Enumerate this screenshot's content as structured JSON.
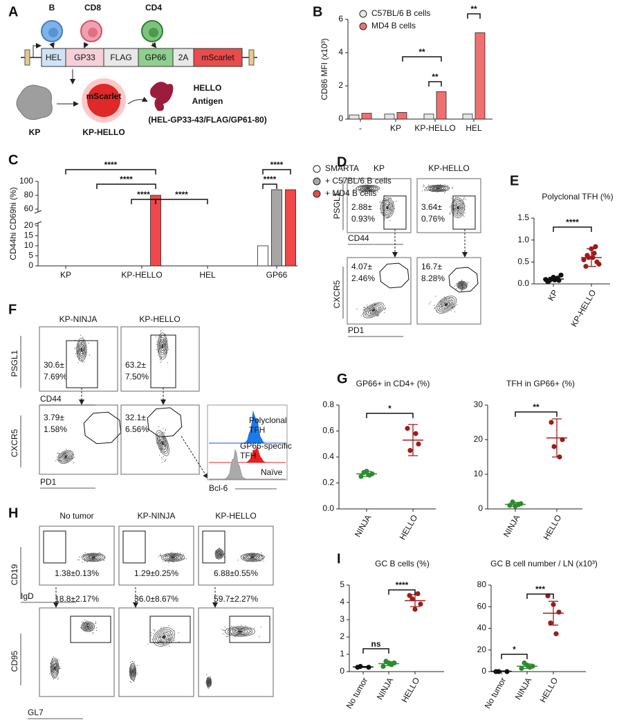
{
  "panel_labels": [
    "A",
    "B",
    "C",
    "D",
    "E",
    "F",
    "G",
    "H",
    "I"
  ],
  "schematic": {
    "cell_labels": [
      "B",
      "CD8",
      "CD4"
    ],
    "segments": [
      "HEL",
      "GP33",
      "FLAG",
      "GP66",
      "2A",
      "mScarlet"
    ],
    "cell_inner": "mScarlet",
    "tumor_labels": [
      "KP",
      "KP-HELLO"
    ],
    "antigen_title": [
      "HELLO",
      "Antigen"
    ],
    "antigen_formula": "(HEL-GP33-43/FLAG/GP61-80)"
  },
  "flow_D": {
    "titles": [
      "KP",
      "KP-HELLO"
    ],
    "top_axes": [
      "PSGL1",
      "CD44"
    ],
    "bottom_axes": [
      "CXCR5",
      "PD1"
    ],
    "top_pcts": [
      [
        "2.88±",
        "0.93%"
      ],
      [
        "3.64±",
        "0.76%"
      ]
    ],
    "bottom_pcts": [
      [
        "4.07±",
        "2.46%"
      ],
      [
        "16.7±",
        "8.28%"
      ]
    ]
  },
  "flow_F": {
    "titles": [
      "KP-NINJA",
      "KP-HELLO"
    ],
    "top_axes": [
      "PSGL1",
      "CD44"
    ],
    "bottom_axes": [
      "CXCR5",
      "PD1"
    ],
    "top_pcts": [
      [
        "30.6±",
        "7.69%"
      ],
      [
        "63.2±",
        "7.50%"
      ]
    ],
    "bottom_pcts": [
      [
        "3.79±",
        "1.58%"
      ],
      [
        "32.1±",
        "6.56%"
      ]
    ],
    "histogram": {
      "legend": [
        [
          "Polyclonal",
          "TFH"
        ],
        [
          "GP66-specific",
          "TFH"
        ],
        [
          "Naïve"
        ]
      ],
      "xlabel": "Bcl-6"
    }
  },
  "flow_H": {
    "titles": [
      "No tumor",
      "KP-NINJA",
      "KP-HELLO"
    ],
    "top_axes": [
      "CD19",
      "IgD"
    ],
    "bottom_axes": [
      "CD95",
      "GL7"
    ],
    "top_pcts": [
      "1.38±0.13%",
      "1.29±0.25%",
      "6.88±0.55%"
    ],
    "bottom_pcts": [
      "18.8±2.17%",
      "36.0±8.67%",
      "59.7±2.27%"
    ]
  },
  "chart_data": [
    {
      "type": "bar",
      "ylabel": "CD86 MFI (x10³)",
      "categories": [
        "-",
        "KP",
        "KP-HELLO",
        "HEL"
      ],
      "series": [
        {
          "name": "C57BL/6 B cells",
          "color": "#e6e6e6",
          "values": [
            0.25,
            0.3,
            0.3,
            0.3
          ]
        },
        {
          "name": "MD4 B cells",
          "color": "#f07070",
          "values": [
            0.35,
            0.4,
            1.65,
            5.2
          ]
        }
      ],
      "ylim": [
        0,
        6
      ],
      "yticks": [
        0,
        2,
        4,
        6
      ],
      "legend": "upper left",
      "annotations": [
        "**",
        "**",
        "**"
      ]
    },
    {
      "type": "bar",
      "ylabel": "CD44hi CD69hi (%)",
      "categories": [
        "KP",
        "KP-HELLO",
        "HEL",
        "GP66"
      ],
      "series": [
        {
          "name": "SMARTA",
          "color": "#ffffff",
          "values": [
            0,
            0,
            0,
            10
          ]
        },
        {
          "name": "+ C57BL/6 B cells",
          "color": "#a6a6a6",
          "values": [
            0,
            0,
            0,
            88
          ]
        },
        {
          "name": "+ MD4 B cells",
          "color": "#f04848",
          "values": [
            0,
            80,
            0,
            88
          ]
        }
      ],
      "ylim": [
        0,
        100
      ],
      "ybreak": [
        20,
        60
      ],
      "yticks": [
        0,
        5,
        10,
        15,
        20,
        60,
        80,
        100
      ],
      "legend": "right",
      "annotations": [
        "****",
        "****",
        "****",
        "****",
        "****",
        "****"
      ]
    },
    {
      "type": "strip",
      "title": "Polyclonal TFH (%)",
      "categories": [
        "KP",
        "KP-HELLO"
      ],
      "colors": [
        "#111111",
        "#9c1c1c"
      ],
      "points": [
        [
          0.05,
          0.08,
          0.1,
          0.12,
          0.15,
          0.1,
          0.2,
          0.07,
          0.13,
          0.09
        ],
        [
          0.4,
          0.5,
          0.6,
          0.7,
          0.8,
          0.55,
          0.45,
          0.65,
          0.85,
          0.6
        ]
      ],
      "values": [
        0.11,
        0.6
      ],
      "errors": [
        0.04,
        0.2
      ],
      "ylim": [
        0,
        1.5
      ],
      "yticks": [
        {
          "value": 0,
          "label": "0.0"
        },
        0.5,
        {
          "value": 1,
          "label": "1.0"
        },
        1.5
      ],
      "annotations": [
        "****"
      ]
    },
    {
      "type": "strip",
      "title": "GP66+ in CD4+ (%)",
      "categories": [
        "NINJA",
        "HELLO"
      ],
      "colors": [
        "#2e8b2e",
        "#9c1c1c"
      ],
      "points": [
        [
          0.25,
          0.27,
          0.28,
          0.26,
          0.29
        ],
        [
          0.62,
          0.5,
          0.45,
          0.58
        ]
      ],
      "values": [
        0.27,
        0.53
      ],
      "errors": [
        0.02,
        0.12
      ],
      "ylim": [
        0,
        0.8
      ],
      "yticks": [
        {
          "value": 0,
          "label": "0.0"
        },
        0.2,
        0.4,
        0.6,
        0.8
      ],
      "annotations": [
        "*"
      ]
    },
    {
      "type": "strip",
      "title": "TFH in GP66+ (%)",
      "categories": [
        "NINJA",
        "HELLO"
      ],
      "colors": [
        "#2e8b2e",
        "#9c1c1c"
      ],
      "points": [
        [
          1,
          1.5,
          2,
          1.2,
          0.8
        ],
        [
          25,
          20,
          18,
          15
        ]
      ],
      "values": [
        1.3,
        20.5
      ],
      "errors": [
        0.6,
        5.5
      ],
      "ylim": [
        0,
        30
      ],
      "yticks": [
        0,
        10,
        20,
        30
      ],
      "annotations": [
        "**"
      ]
    },
    {
      "type": "strip",
      "title": "GC B cells (%)",
      "categories": [
        "No tumor",
        "NINJA",
        "HELLO"
      ],
      "colors": [
        "#111111",
        "#2e8b2e",
        "#9c1c1c"
      ],
      "points": [
        [
          0.25,
          0.25,
          0.3
        ],
        [
          0.3,
          0.5,
          0.6,
          0.4,
          0.5
        ],
        [
          4.4,
          3.9,
          4.2,
          4.5,
          3.6
        ]
      ],
      "values": [
        0.27,
        0.46,
        4.1
      ],
      "errors": [
        0.03,
        0.12,
        0.35
      ],
      "ylim": [
        0,
        5
      ],
      "yticks": [
        0,
        1,
        2,
        3,
        4,
        5
      ],
      "annotations": [
        "ns",
        "****"
      ]
    },
    {
      "type": "strip",
      "title": "GC B cell number / LN (x10³)",
      "categories": [
        "No tumor",
        "NINJA",
        "HELLO"
      ],
      "colors": [
        "#111111",
        "#2e8b2e",
        "#9c1c1c"
      ],
      "points": [
        [
          0,
          0,
          0
        ],
        [
          3,
          5,
          8,
          4,
          6
        ],
        [
          70,
          55,
          45,
          35,
          62
        ]
      ],
      "values": [
        0.3,
        5,
        54
      ],
      "errors": [
        0.3,
        2,
        11
      ],
      "ylim": [
        0,
        80
      ],
      "yticks": [
        0,
        20,
        40,
        60,
        80
      ],
      "annotations": [
        "*",
        "***"
      ]
    }
  ]
}
